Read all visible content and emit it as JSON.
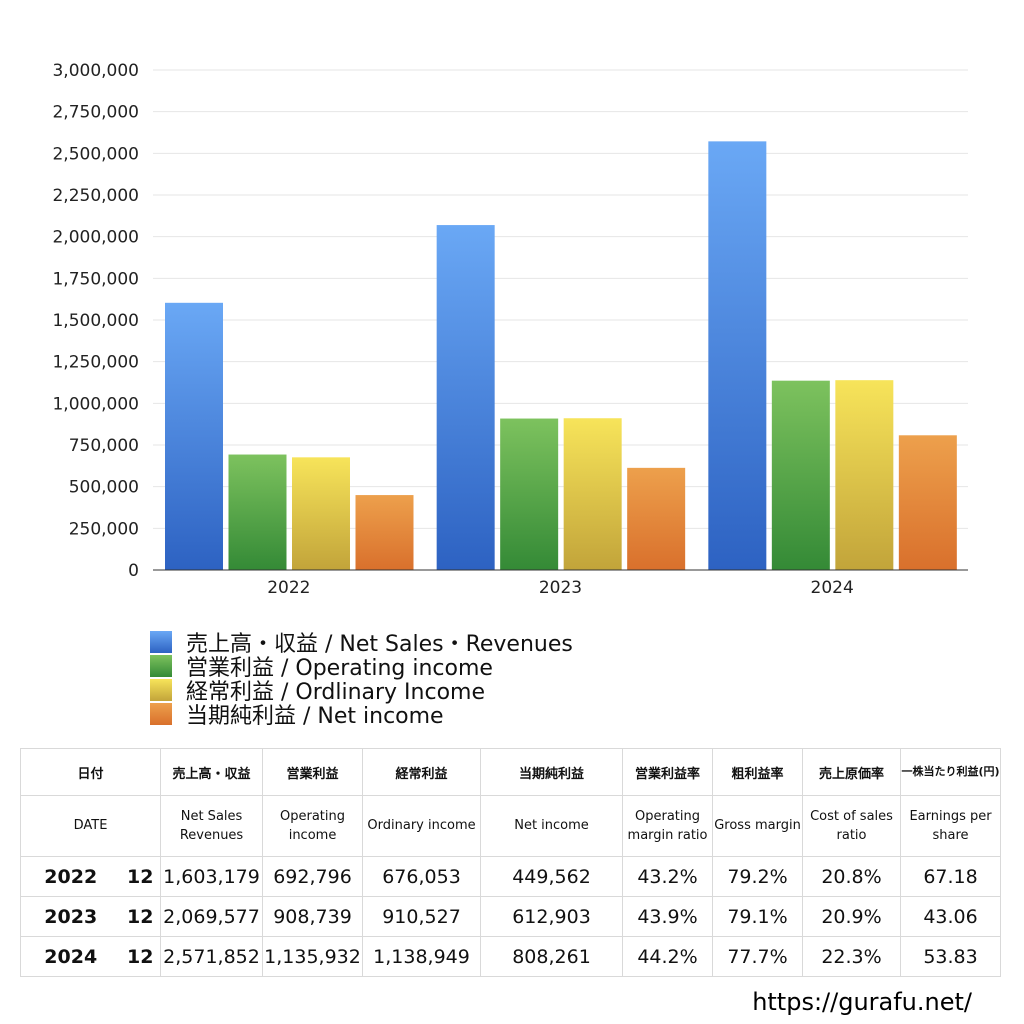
{
  "chart_data": {
    "type": "bar",
    "categories": [
      "2022",
      "2023",
      "2024"
    ],
    "series": [
      {
        "name": "売上高・収益 / Net Sales・Revenues",
        "values": [
          1603179,
          2069577,
          2571852
        ],
        "color_top": "#6aa8f5",
        "color_bottom": "#2d62c2"
      },
      {
        "name": "営業利益 / Operating income",
        "values": [
          692796,
          908739,
          1135932
        ],
        "color_top": "#7dc25e",
        "color_bottom": "#348a36"
      },
      {
        "name": "経常利益 / Ordlinary Income",
        "values": [
          676053,
          910527,
          1138949
        ],
        "color_top": "#f7e45a",
        "color_bottom": "#c2a43a"
      },
      {
        "name": "当期純利益 / Net income",
        "values": [
          449562,
          612903,
          808261
        ],
        "color_top": "#eda04c",
        "color_bottom": "#d9702c"
      }
    ],
    "ylim": [
      0,
      3000000
    ],
    "yticks": [
      "0",
      "250,000",
      "500,000",
      "750,000",
      "1,000,000",
      "1,250,000",
      "1,500,000",
      "1,750,000",
      "2,000,000",
      "2,250,000",
      "2,500,000",
      "2,750,000",
      "3,000,000"
    ],
    "grid": true,
    "legend_position": "bottom-left"
  },
  "table": {
    "header_jp": [
      "日付",
      "売上高・収益",
      "営業利益",
      "経常利益",
      "当期純利益",
      "営業利益率",
      "粗利益率",
      "売上原価率",
      "一株当たり利益(円)"
    ],
    "header_en": [
      "DATE",
      "Net Sales Revenues",
      "Operating income",
      "Ordinary income",
      "Net income",
      "Operating margin ratio",
      "Gross margin",
      "Cost of sales ratio",
      "Earnings per share"
    ],
    "rows": [
      {
        "year": "2022",
        "month": "12",
        "sales": "1,603,179",
        "op": "692,796",
        "ord": "676,053",
        "net": "449,562",
        "opm": "43.2%",
        "gm": "79.2%",
        "cos": "20.8%",
        "eps": "67.18"
      },
      {
        "year": "2023",
        "month": "12",
        "sales": "2,069,577",
        "op": "908,739",
        "ord": "910,527",
        "net": "612,903",
        "opm": "43.9%",
        "gm": "79.1%",
        "cos": "20.9%",
        "eps": "43.06"
      },
      {
        "year": "2024",
        "month": "12",
        "sales": "2,571,852",
        "op": "1,135,932",
        "ord": "1,138,949",
        "net": "808,261",
        "opm": "44.2%",
        "gm": "77.7%",
        "cos": "22.3%",
        "eps": "53.83"
      }
    ]
  },
  "footer_url": "https://gurafu.net/"
}
